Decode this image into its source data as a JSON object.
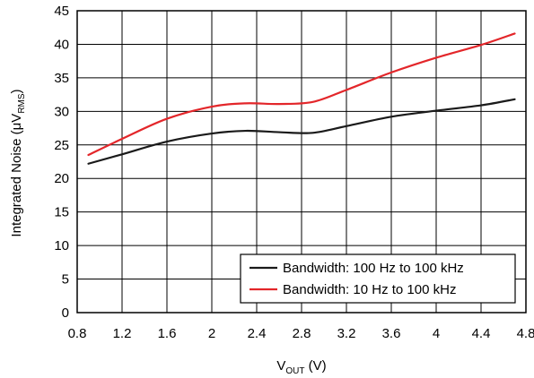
{
  "chart_data": {
    "type": "line",
    "title": "",
    "xlabel": {
      "main": "V",
      "sub": "OUT",
      "suffix": " (V)"
    },
    "ylabel": {
      "prefix": "Integrated Noise (μV",
      "sub": "RMS",
      "suffix": ")"
    },
    "xlim": [
      0.8,
      4.8
    ],
    "ylim": [
      0,
      45
    ],
    "xticks": [
      0.8,
      1.2,
      1.6,
      2,
      2.4,
      2.8,
      3.2,
      3.6,
      4,
      4.4,
      4.8
    ],
    "xtick_labels": [
      "0.8",
      "1.2",
      "1.6",
      "2",
      "2.4",
      "2.8",
      "3.2",
      "3.6",
      "4",
      "4.4",
      "4.8"
    ],
    "yticks": [
      0,
      5,
      10,
      15,
      20,
      25,
      30,
      35,
      40,
      45
    ],
    "ytick_labels": [
      "0",
      "5",
      "10",
      "15",
      "20",
      "25",
      "30",
      "35",
      "40",
      "45"
    ],
    "grid": true,
    "legend_position": "bottom-right",
    "series": [
      {
        "name": "Bandwidth: 100 Hz to 100 kHz",
        "color": "#1a1a1a",
        "x": [
          0.9,
          1.2,
          1.6,
          2.0,
          2.3,
          2.6,
          2.9,
          3.2,
          3.6,
          4.0,
          4.4,
          4.7
        ],
        "y": [
          22.2,
          23.6,
          25.5,
          26.7,
          27.1,
          26.9,
          26.8,
          27.8,
          29.2,
          30.1,
          30.9,
          31.8
        ]
      },
      {
        "name": "Bandwidth: 10 Hz to 100 kHz",
        "color": "#e3262a",
        "x": [
          0.9,
          1.2,
          1.6,
          2.0,
          2.3,
          2.6,
          2.9,
          3.2,
          3.6,
          4.0,
          4.4,
          4.7
        ],
        "y": [
          23.5,
          25.9,
          28.9,
          30.7,
          31.2,
          31.1,
          31.4,
          33.2,
          35.8,
          38.0,
          39.9,
          41.6
        ]
      }
    ]
  }
}
